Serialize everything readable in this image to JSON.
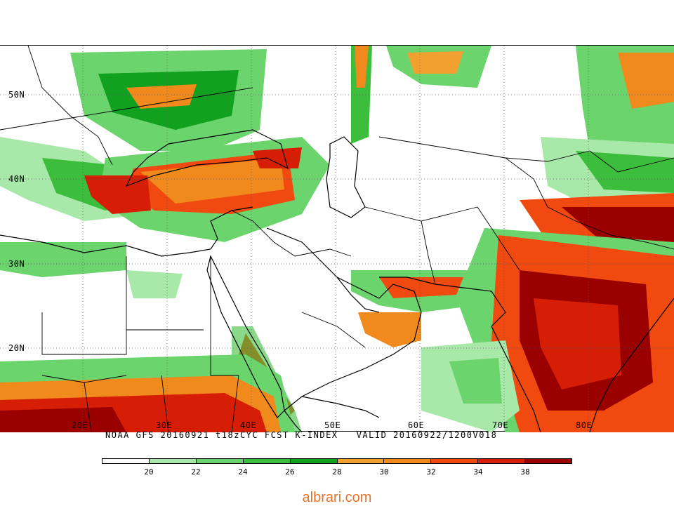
{
  "map": {
    "lat_labels": [
      "50N",
      "40N",
      "30N",
      "20N"
    ],
    "lon_labels": [
      "20E",
      "30E",
      "40E",
      "50E",
      "60E",
      "70E",
      "80E"
    ],
    "caption": "NOAA GFS 20160921 t18zCYC FCST K-INDEX   VALID 20160922/1200V018"
  },
  "colorbar": {
    "ticks": [
      "20",
      "22",
      "24",
      "26",
      "28",
      "30",
      "32",
      "34",
      "38"
    ],
    "colors": [
      "#ffffff",
      "#a8e8a8",
      "#6cd46c",
      "#3cbe3c",
      "#12a020",
      "#f2a030",
      "#f08a1c",
      "#f04a10",
      "#d61e06",
      "#9a0000"
    ]
  },
  "palette": {
    "white": "#ffffff",
    "lightgreen": "#a8e8a8",
    "green": "#6cd46c",
    "midgreen": "#3cbe3c",
    "darkgreen": "#12a020",
    "yellow": "#f2a030",
    "orange": "#f08a1c",
    "red": "#f04a10",
    "darkred": "#9a0000"
  },
  "watermark": "albrari.com"
}
